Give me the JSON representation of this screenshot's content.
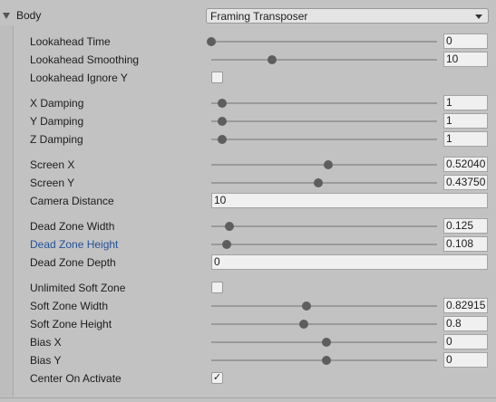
{
  "body": {
    "label": "Body",
    "dropdown_value": "Framing Transposer"
  },
  "rows": {
    "lookahead_time": {
      "label": "Lookahead Time",
      "value": "0",
      "slider": 0.0
    },
    "lookahead_smoothing": {
      "label": "Lookahead Smoothing",
      "value": "10",
      "slider": 0.27
    },
    "lookahead_ignore_y": {
      "label": "Lookahead Ignore Y",
      "checked": false
    },
    "x_damping": {
      "label": "X Damping",
      "value": "1",
      "slider": 0.05
    },
    "y_damping": {
      "label": "Y Damping",
      "value": "1",
      "slider": 0.05
    },
    "z_damping": {
      "label": "Z Damping",
      "value": "1",
      "slider": 0.05
    },
    "screen_x": {
      "label": "Screen X",
      "value": "0.52040",
      "slider": 0.52
    },
    "screen_y": {
      "label": "Screen Y",
      "value": "0.43750",
      "slider": 0.475
    },
    "camera_distance": {
      "label": "Camera Distance",
      "value": "10"
    },
    "dead_zone_width": {
      "label": "Dead Zone Width",
      "value": "0.125",
      "slider": 0.08
    },
    "dead_zone_height": {
      "label": "Dead Zone Height",
      "value": "0.108",
      "slider": 0.07
    },
    "dead_zone_depth": {
      "label": "Dead Zone Depth",
      "value": "0"
    },
    "unlimited_soft_zone": {
      "label": "Unlimited Soft Zone",
      "checked": false
    },
    "soft_zone_width": {
      "label": "Soft Zone Width",
      "value": "0.82915",
      "slider": 0.42
    },
    "soft_zone_height": {
      "label": "Soft Zone Height",
      "value": "0.8",
      "slider": 0.41
    },
    "bias_x": {
      "label": "Bias X",
      "value": "0",
      "slider": 0.51
    },
    "bias_y": {
      "label": "Bias Y",
      "value": "0",
      "slider": 0.51
    },
    "center_on_activate": {
      "label": "Center On Activate",
      "checked": true,
      "check_glyph": "✓"
    }
  }
}
